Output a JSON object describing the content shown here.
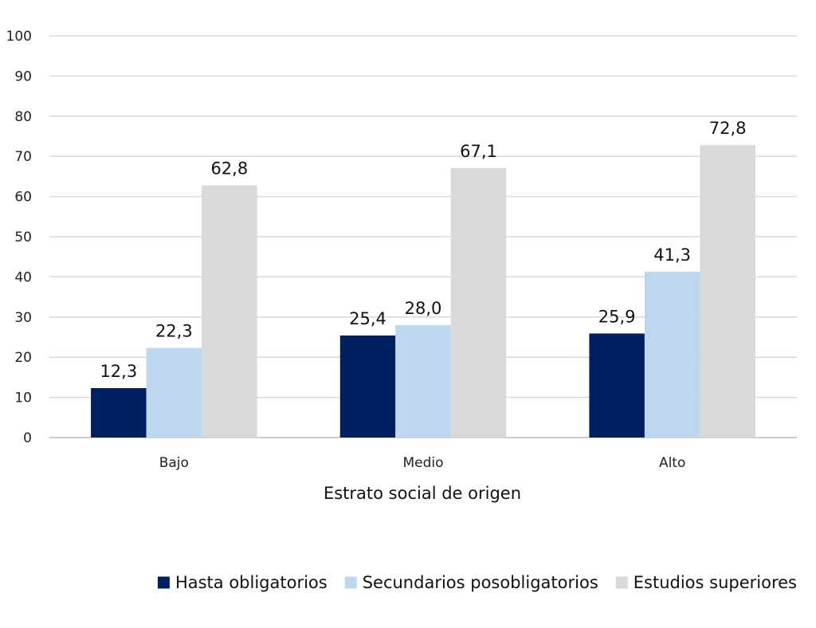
{
  "chart_data": {
    "type": "bar",
    "title": "",
    "xlabel": "Estrato social de origen",
    "ylabel": "",
    "ylim": [
      0,
      100
    ],
    "yticks": [
      0,
      10,
      20,
      30,
      40,
      50,
      60,
      70,
      80,
      90,
      100
    ],
    "grid": true,
    "legend_position": "bottom-right",
    "categories": [
      "Bajo",
      "Medio",
      "Alto"
    ],
    "series": [
      {
        "name": "Hasta obligatorios",
        "color": "#002060",
        "values": [
          12.3,
          25.4,
          25.9
        ],
        "labels": [
          "12,3",
          "25,4",
          "25,9"
        ]
      },
      {
        "name": "Secundarios posobligatorios",
        "color": "#bdd7ee",
        "values": [
          22.3,
          28.0,
          41.3
        ],
        "labels": [
          "22,3",
          "28,0",
          "41,3"
        ]
      },
      {
        "name": "Estudios superiores",
        "color": "#d9d9d9",
        "values": [
          62.8,
          67.1,
          72.8
        ],
        "labels": [
          "62,8",
          "67,1",
          "72,8"
        ]
      }
    ]
  }
}
